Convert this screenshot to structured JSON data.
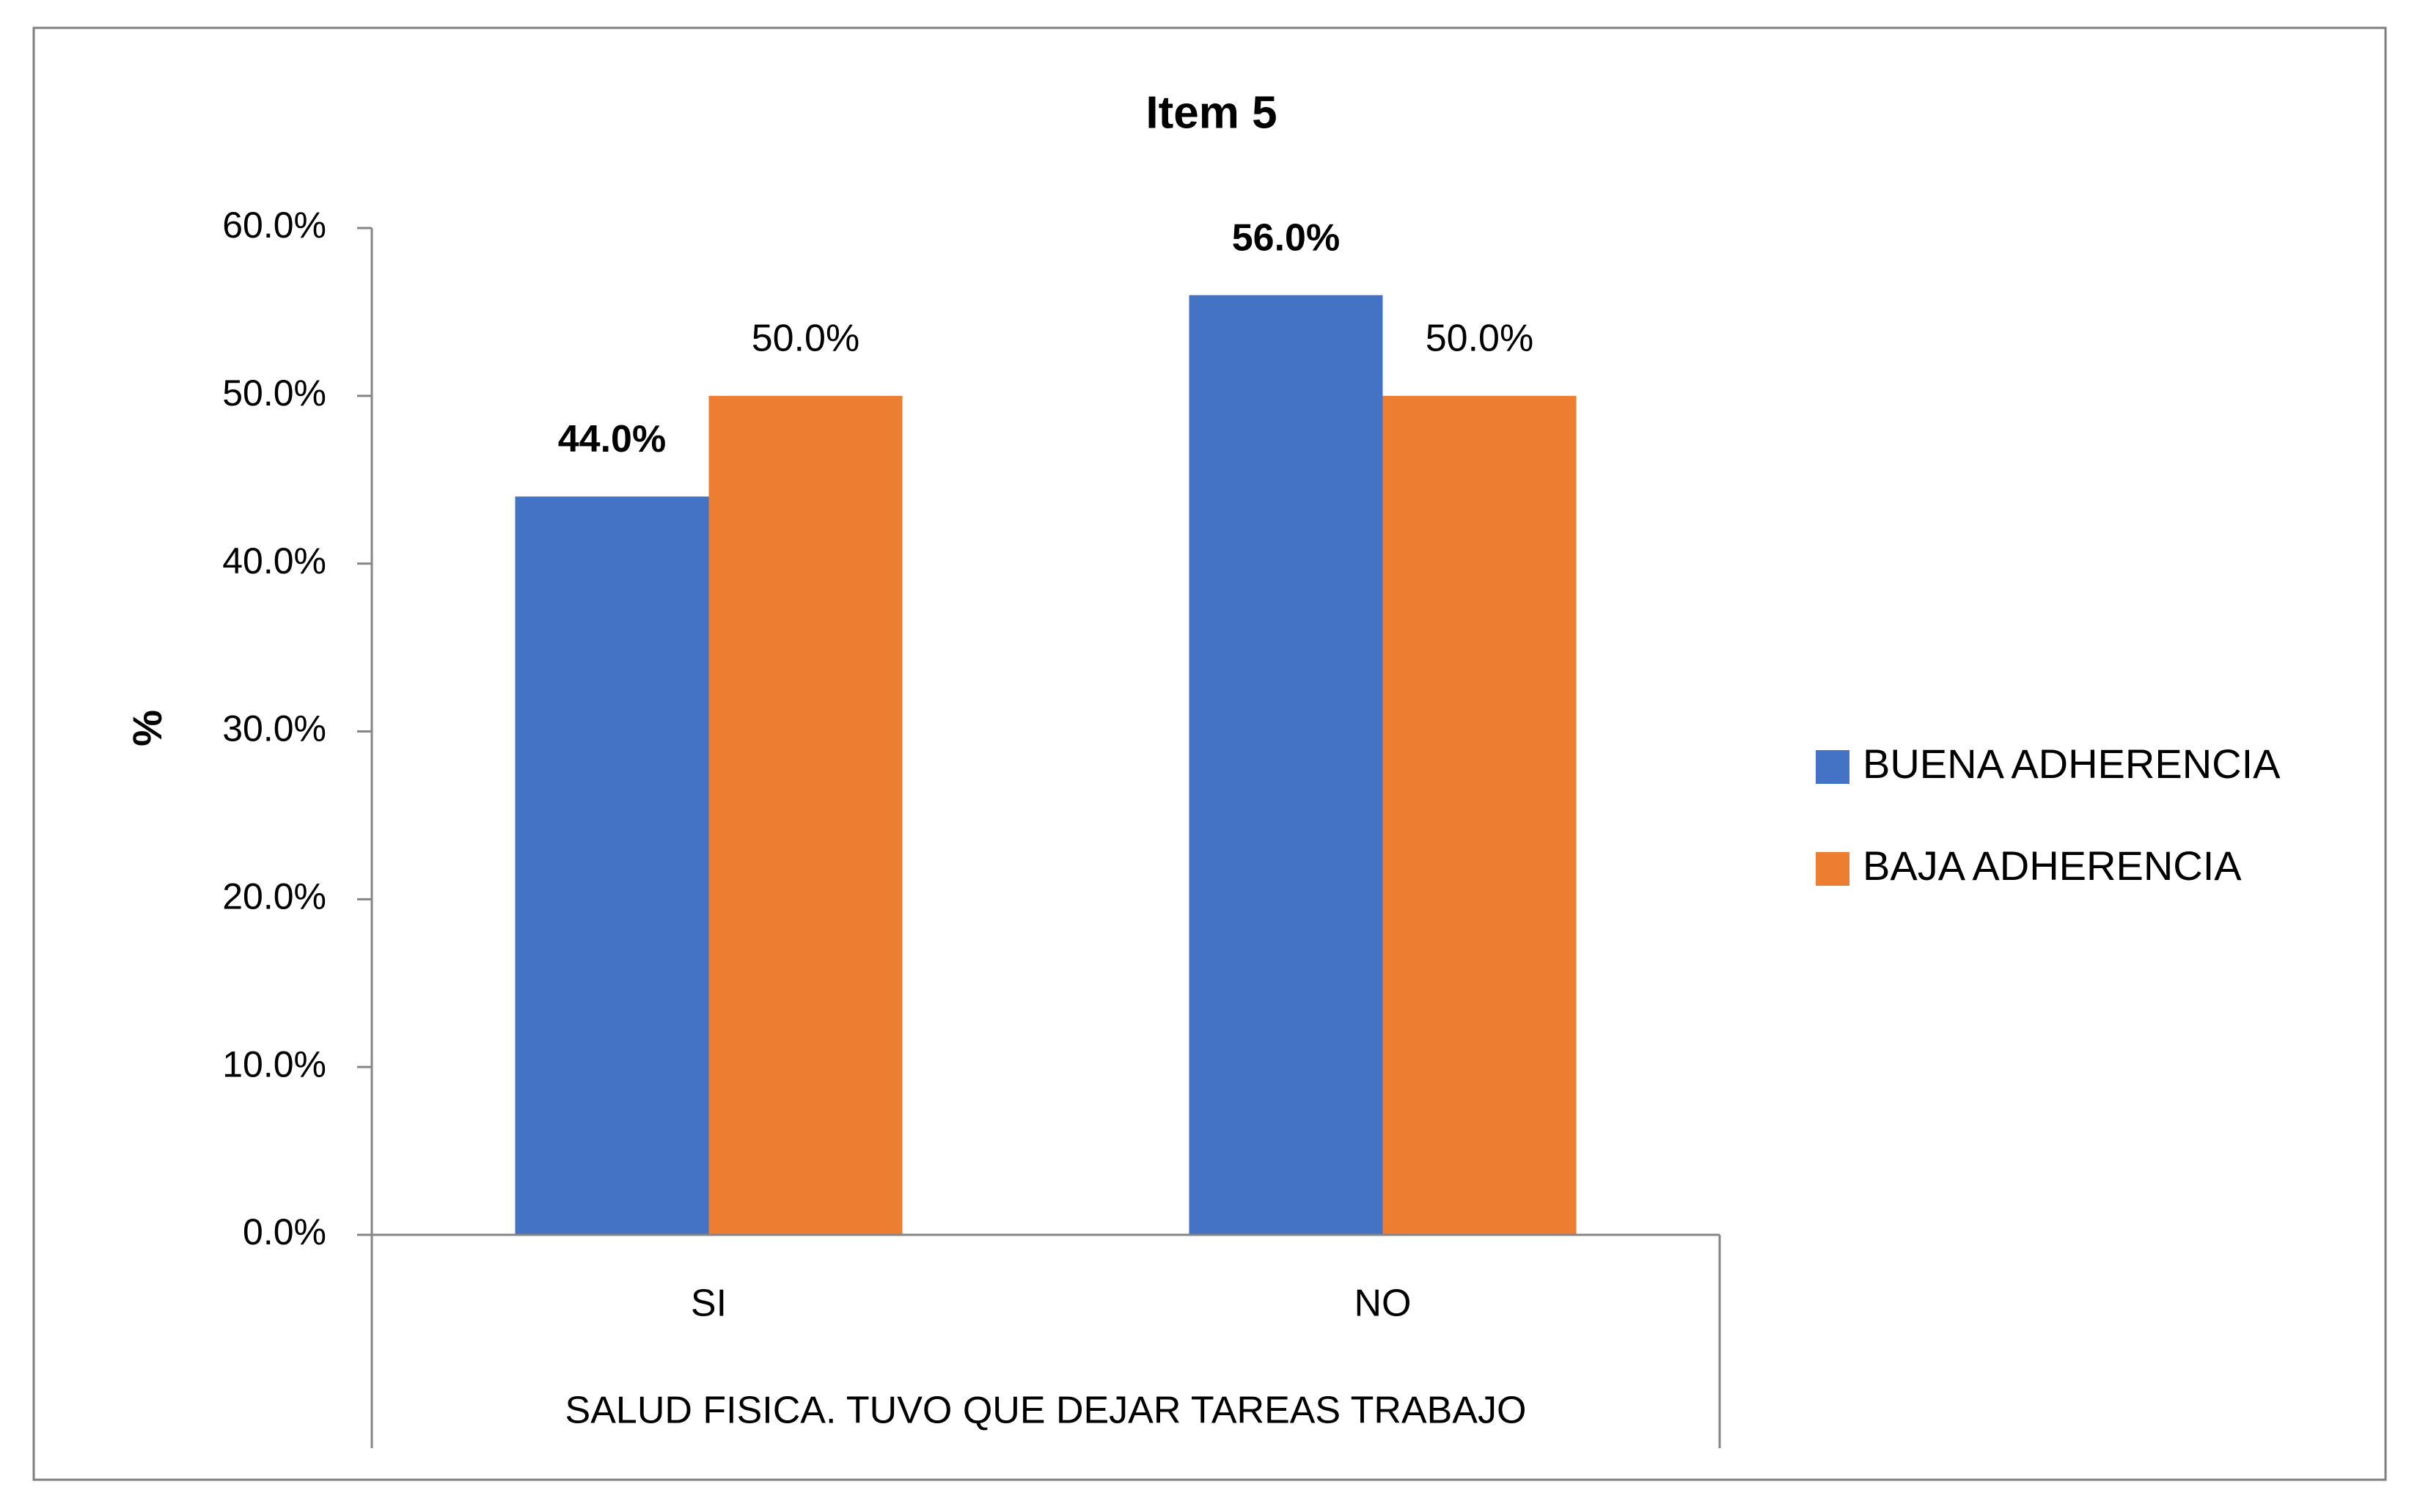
{
  "chart_data": {
    "type": "bar",
    "title": "Item 5",
    "x_label": "SALUD FISICA. TUVO QUE DEJAR TAREAS TRABAJO",
    "y_label": "%",
    "categories": [
      "SI",
      "NO"
    ],
    "series": [
      {
        "name": "BUENA ADHERENCIA",
        "color": "#4472c4",
        "values": [
          44,
          56
        ],
        "value_labels": [
          "44.0%",
          "56.0%"
        ],
        "label_bold": true
      },
      {
        "name": "BAJA ADHERENCIA",
        "color": "#ed7d31",
        "values": [
          50,
          50
        ],
        "value_labels": [
          "50.0%",
          "50.0%"
        ],
        "label_bold": false
      }
    ],
    "ylim": [
      0,
      60
    ],
    "yticks": [
      {
        "value": 0,
        "label": "0.0%"
      },
      {
        "value": 10,
        "label": "10.0%"
      },
      {
        "value": 20,
        "label": "20.0%"
      },
      {
        "value": 30,
        "label": "30.0%"
      },
      {
        "value": 40,
        "label": "40.0%"
      },
      {
        "value": 50,
        "label": "50.0%"
      },
      {
        "value": 60,
        "label": "60.0%"
      }
    ],
    "grid": false,
    "legend": "right"
  }
}
